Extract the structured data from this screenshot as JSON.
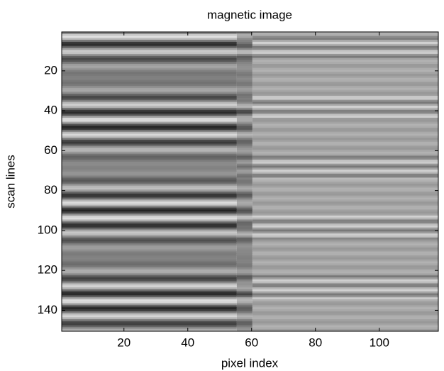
{
  "chart_data": {
    "type": "image",
    "title": "magnetic image",
    "xlabel": "pixel index",
    "ylabel": "scan lines",
    "xlim": [
      0.5,
      118.5
    ],
    "ylim": [
      0.5,
      150.5
    ],
    "y_reversed": true,
    "xticks": [
      20,
      40,
      60,
      80,
      100
    ],
    "yticks": [
      20,
      40,
      60,
      80,
      100,
      120,
      140
    ],
    "colormap": "gray"
  }
}
